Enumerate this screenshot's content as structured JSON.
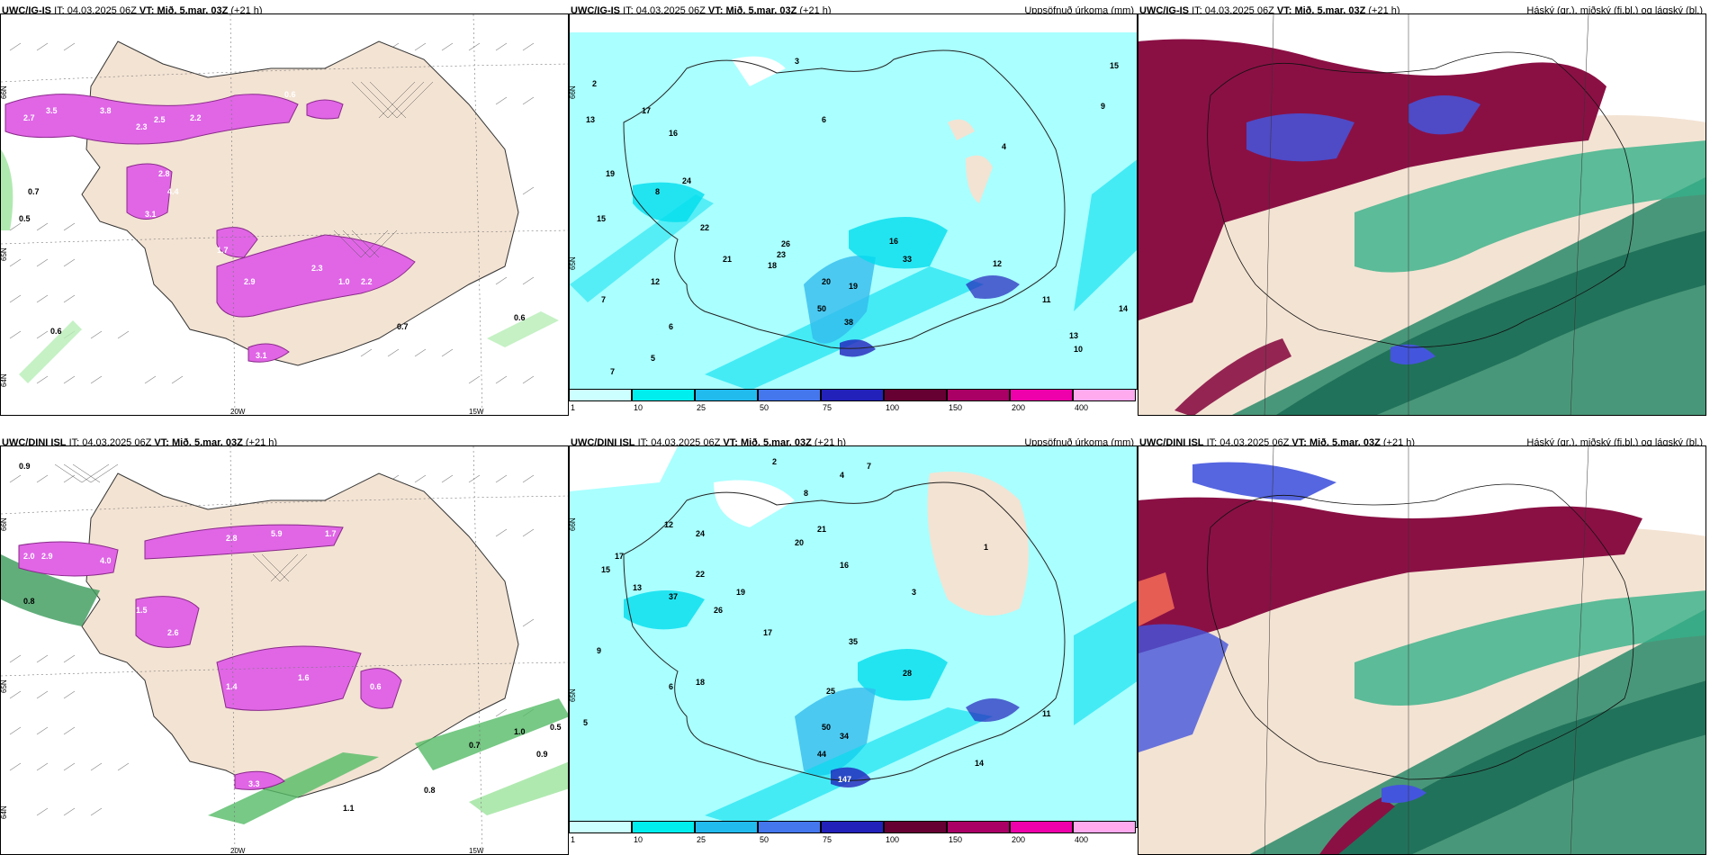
{
  "panels": [
    {
      "model": "UWC/IG-IS",
      "it_label": "IT:",
      "it_value": "04.03.2025 06Z",
      "vt_label": "VT:",
      "vt_value": "Mið. 5.mar. 03Z",
      "lead": "(+21 h)",
      "right_title": "",
      "lat_labels": [
        "66N",
        "65N",
        "64N"
      ],
      "lon_labels": [
        "20W",
        "15W"
      ],
      "values": [
        "2.7",
        "3.5",
        "3.8",
        "2.3",
        "2.5",
        "2.2",
        "0.6",
        "0.7",
        "2.8",
        "4.4",
        "3.1",
        "2.9",
        "2.3",
        "1.7",
        "2.2",
        "1.0",
        "0.6",
        "0.7",
        "0.6",
        "0.5",
        "3.1"
      ]
    },
    {
      "model": "UWC/IG-IS",
      "it_label": "IT:",
      "it_value": "04.03.2025 06Z",
      "vt_label": "VT:",
      "vt_value": "Mið. 5.mar. 03Z",
      "lead": "(+21 h)",
      "right_title": "Uppsöfnuð úrkoma (mm)",
      "lat_labels": [
        "66N",
        "65N",
        "64N"
      ],
      "values": [
        "2",
        "3",
        "13",
        "17",
        "16",
        "19",
        "15",
        "24",
        "22",
        "8",
        "7",
        "12",
        "5",
        "6",
        "7",
        "21",
        "23",
        "18",
        "26",
        "20",
        "19",
        "50",
        "38",
        "16",
        "33",
        "12",
        "11",
        "14",
        "10",
        "13",
        "15",
        "9",
        "4",
        "6"
      ]
    },
    {
      "model": "UWC/IG-IS",
      "it_label": "IT:",
      "it_value": "04.03.2025 06Z",
      "vt_label": "VT:",
      "vt_value": "Mið. 5.mar. 03Z",
      "lead": "(+21 h)",
      "right_title": "Háský (gr.), miðský (fj.bl.) og lágský (bl.)"
    },
    {
      "model": "UWC/DINI ISL",
      "it_label": "IT:",
      "it_value": "04.03.2025 06Z",
      "vt_label": "VT:",
      "vt_value": "Mið. 5.mar. 03Z",
      "lead": "(+21 h)",
      "right_title": "",
      "lat_labels": [
        "66N",
        "65N",
        "64N"
      ],
      "lon_labels": [
        "20W",
        "15W"
      ],
      "values": [
        "0.9",
        "2.0",
        "2.9",
        "4.0",
        "2.8",
        "5.9",
        "1.7",
        "0.8",
        "1.5",
        "2.6",
        "1.4",
        "1.6",
        "0.6",
        "1.0",
        "0.9",
        "0.7",
        "0.8",
        "0.5",
        "1.1",
        "3.3"
      ]
    },
    {
      "model": "UWC/DINI ISL",
      "it_label": "IT:",
      "it_value": "04.03.2025 06Z",
      "vt_label": "VT:",
      "vt_value": "Mið. 5.mar. 03Z",
      "lead": "(+21 h)",
      "right_title": "Uppsöfnuð úrkoma (mm)",
      "lat_labels": [
        "66N",
        "65N",
        "64N"
      ],
      "values": [
        "2",
        "7",
        "4",
        "8",
        "12",
        "15",
        "17",
        "24",
        "22",
        "19",
        "26",
        "37",
        "13",
        "18",
        "17",
        "20",
        "21",
        "16",
        "35",
        "25",
        "28",
        "50",
        "34",
        "147",
        "44",
        "11",
        "14",
        "9",
        "6",
        "5",
        "3",
        "1"
      ]
    },
    {
      "model": "UWC/DINI ISL",
      "it_label": "IT:",
      "it_value": "04.03.2025 06Z",
      "vt_label": "VT:",
      "vt_value": "Mið. 5.mar. 03Z",
      "lead": "(+21 h)",
      "right_title": "Háský (gr.), miðský (fj.bl.) og lágský (bl.)"
    }
  ],
  "colorbar": {
    "colors": [
      "#ccffff",
      "#00eeee",
      "#22bbee",
      "#4477ee",
      "#2222bb",
      "#660033",
      "#aa0066",
      "#ee00aa",
      "#ffaaee"
    ],
    "labels": [
      "1",
      "10",
      "25",
      "50",
      "75",
      "100",
      "150",
      "200",
      "400"
    ]
  },
  "colors": {
    "land": "#f3e3d3",
    "precip_purple": "#e066e6",
    "precip_light": "#aaffff",
    "high_cloud": "#2a8a6a",
    "mid_cloud": "#4455dd",
    "low_cloud": "#8a1044"
  }
}
